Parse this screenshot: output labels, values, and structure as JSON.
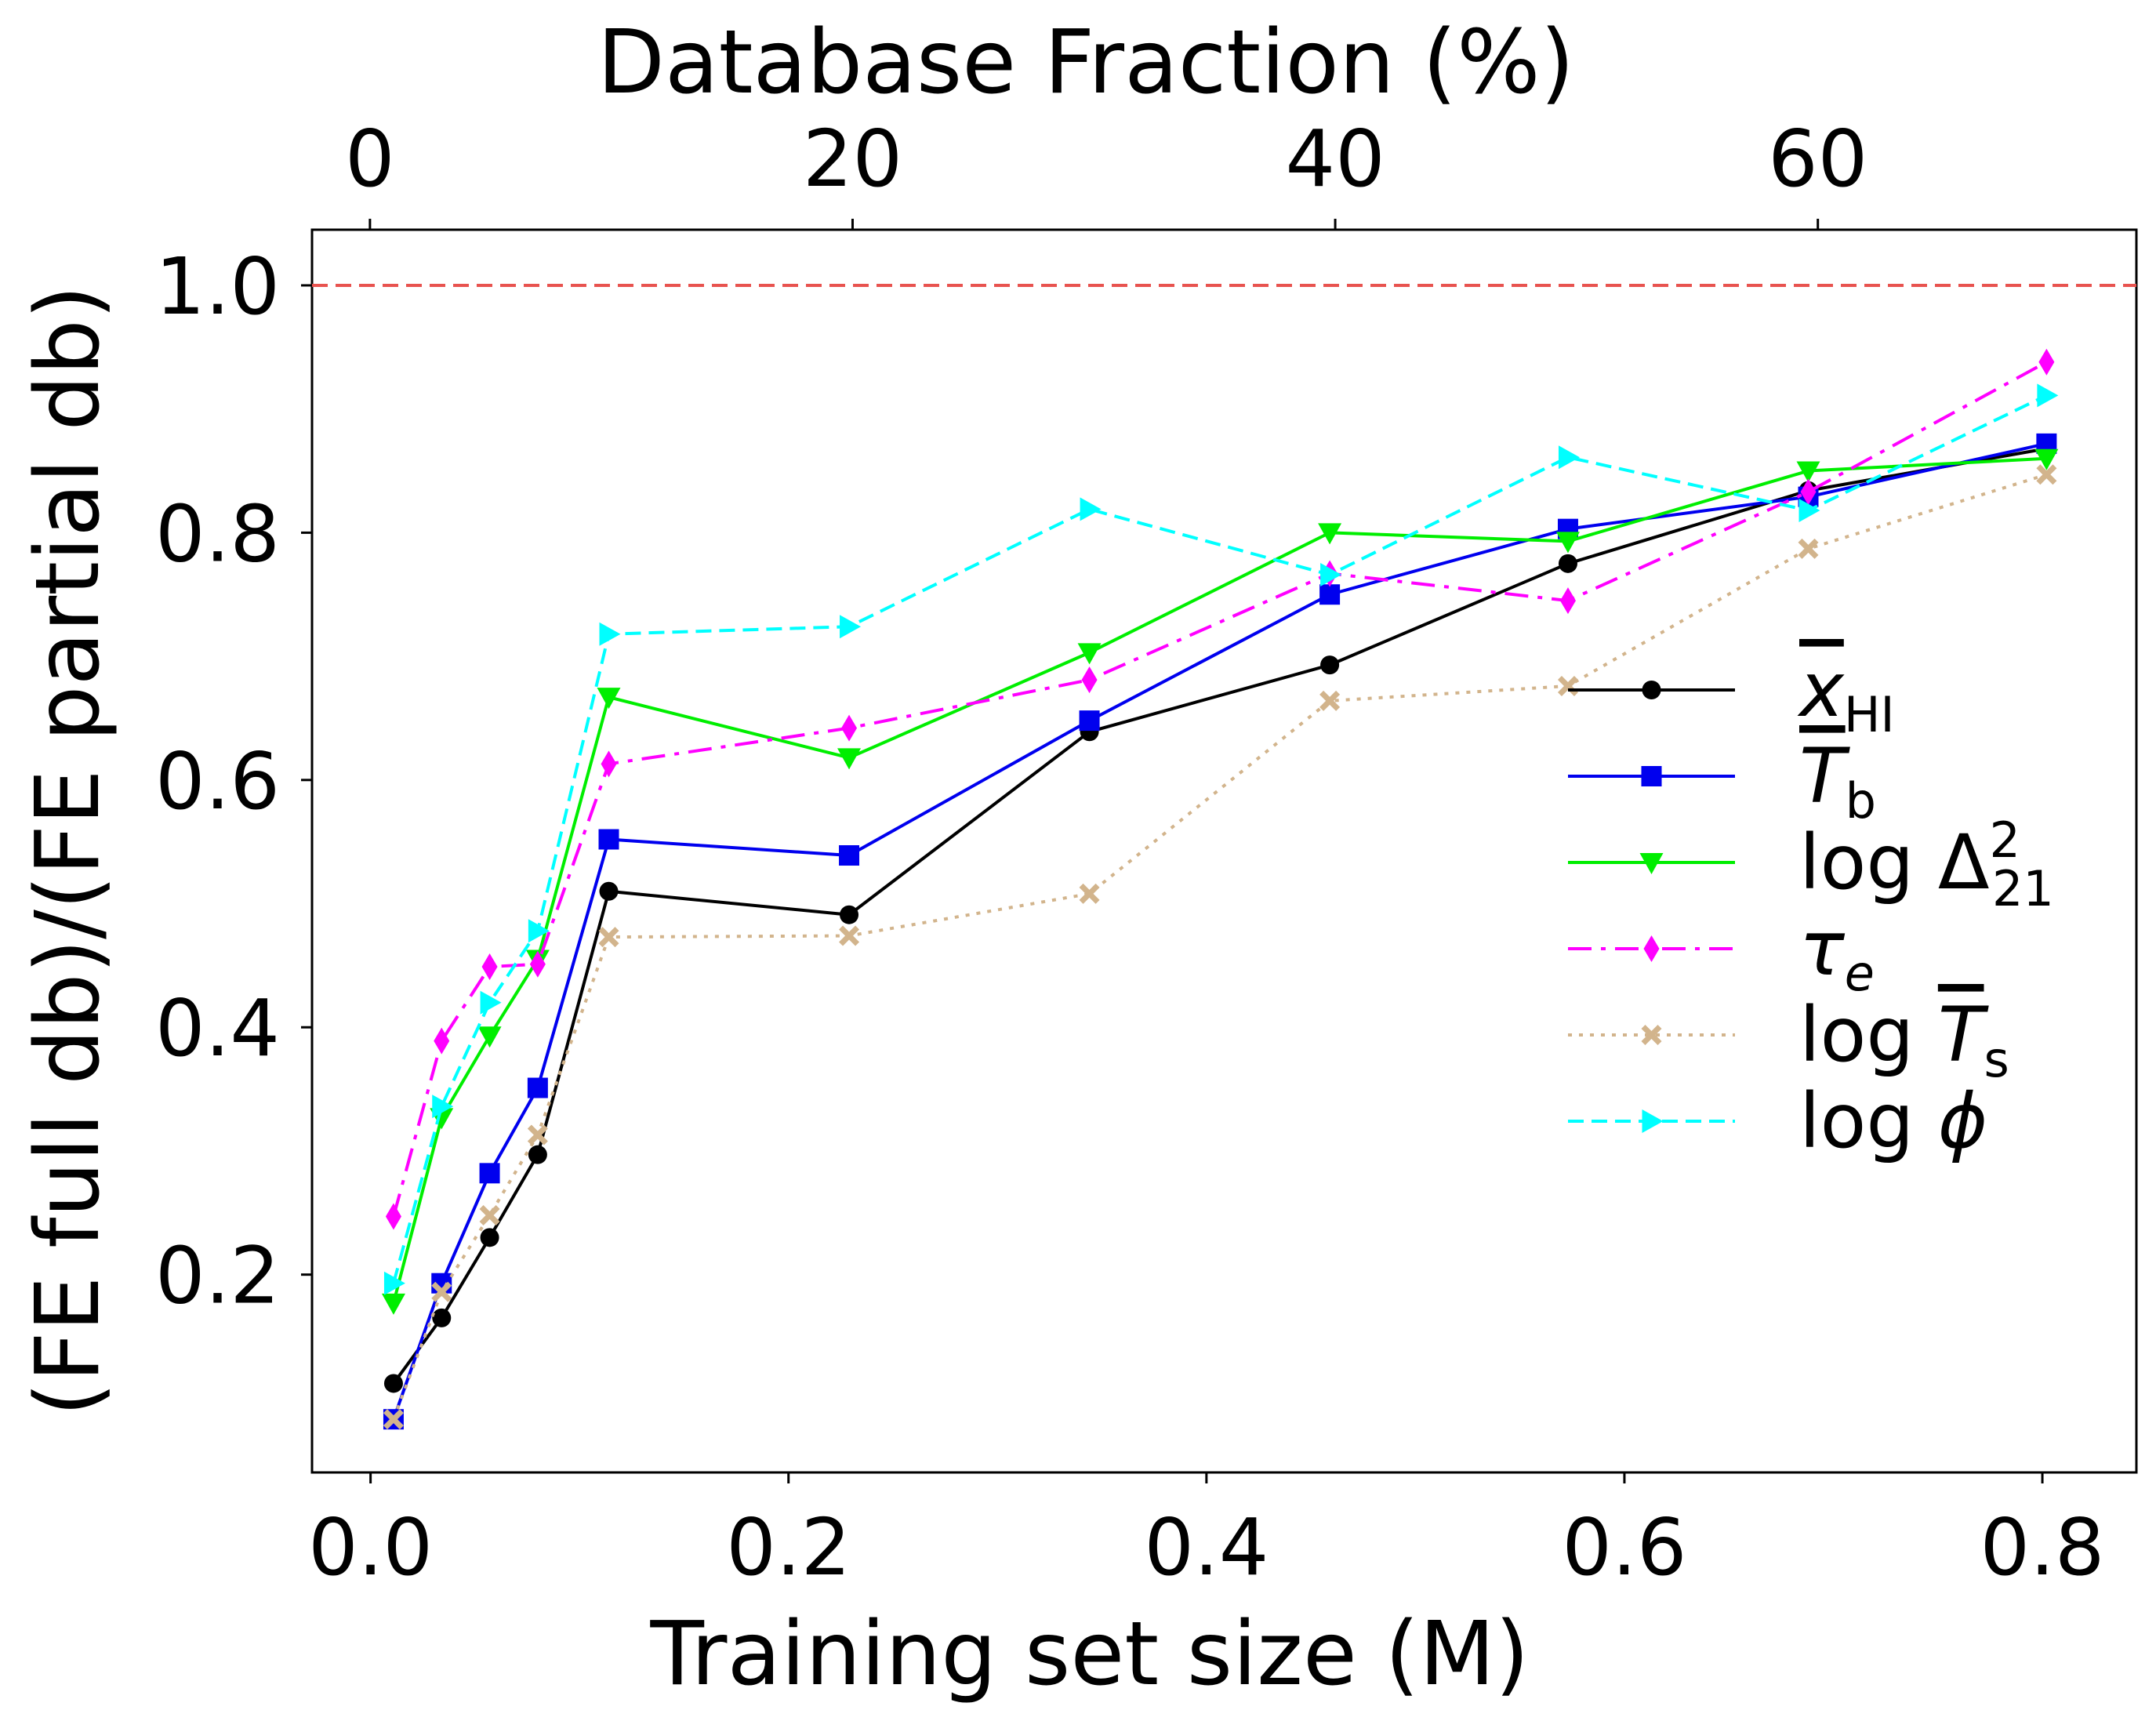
{
  "chart_data": {
    "type": "line",
    "xlabel": "Training set size (M)",
    "x2label": "Database Fraction (%)",
    "ylabel": "(FE full db)/(FE partial db)",
    "xlim": [
      -0.028,
      0.845
    ],
    "ylim": [
      0.04,
      1.045
    ],
    "x2lim": [
      -2.4,
      73.2
    ],
    "xticks": [
      0.0,
      0.2,
      0.4,
      0.6,
      0.8
    ],
    "xtick_labels": [
      "0.0",
      "0.2",
      "0.4",
      "0.6",
      "0.8"
    ],
    "yticks": [
      0.2,
      0.4,
      0.6,
      0.8,
      1.0
    ],
    "ytick_labels": [
      "0.2",
      "0.4",
      "0.6",
      "0.8",
      "1.0"
    ],
    "x2ticks": [
      0,
      20,
      40,
      60
    ],
    "x2tick_labels": [
      "0",
      "20",
      "40",
      "60"
    ],
    "reference_line": {
      "y": 1.0,
      "color": "#e8534f",
      "style": "dashed"
    },
    "legend_position": "lower-right",
    "grid": false,
    "x": [
      0.011,
      0.034,
      0.057,
      0.08,
      0.114,
      0.229,
      0.344,
      0.459,
      0.573,
      0.688,
      0.802
    ],
    "series": [
      {
        "name": "x̄HI",
        "legend": {
          "main": "x",
          "sub": "HI",
          "overbar": true,
          "italic": true,
          "log": false
        },
        "color": "#000000",
        "dash": "",
        "marker": "circle",
        "values": [
          0.112,
          0.165,
          0.23,
          0.297,
          0.51,
          0.491,
          0.639,
          0.693,
          0.775,
          0.834,
          0.868
        ]
      },
      {
        "name": "T̄b",
        "legend": {
          "main": "T",
          "sub": "b",
          "overbar": true,
          "italic": true,
          "log": false
        },
        "color": "#0000ee",
        "dash": "",
        "marker": "square",
        "values": [
          0.083,
          0.193,
          0.282,
          0.351,
          0.552,
          0.539,
          0.648,
          0.75,
          0.803,
          0.829,
          0.872
        ]
      },
      {
        "name": "log Δ²21",
        "legend": {
          "main": "Δ",
          "sub": "21",
          "sup": "2",
          "overbar": false,
          "italic": false,
          "log": true
        },
        "color": "#00ee00",
        "dash": "",
        "marker": "triangle-down",
        "values": [
          0.177,
          0.327,
          0.393,
          0.455,
          0.667,
          0.618,
          0.703,
          0.8,
          0.793,
          0.85,
          0.86
        ]
      },
      {
        "name": "τe",
        "legend": {
          "main": "τ",
          "sub": "e",
          "overbar": false,
          "italic": true,
          "subItalic": true,
          "log": false
        },
        "color": "#ff00ff",
        "dash": "30,12,6,12",
        "marker": "thin-diamond",
        "values": [
          0.247,
          0.389,
          0.449,
          0.451,
          0.613,
          0.642,
          0.681,
          0.767,
          0.745,
          0.833,
          0.938
        ]
      },
      {
        "name": "log T̄s",
        "legend": {
          "main": "T",
          "sub": "s",
          "overbar": true,
          "italic": true,
          "log": true
        },
        "color": "#d2b48c",
        "dash": "5,9",
        "marker": "x-filled",
        "values": [
          0.083,
          0.186,
          0.248,
          0.313,
          0.473,
          0.474,
          0.508,
          0.664,
          0.676,
          0.787,
          0.847
        ]
      },
      {
        "name": "log ϕ",
        "legend": {
          "main": "ϕ",
          "overbar": false,
          "italic": true,
          "log": true
        },
        "color": "#00ffff",
        "dash": "20,10",
        "marker": "triangle-right",
        "values": [
          0.193,
          0.336,
          0.42,
          0.478,
          0.718,
          0.724,
          0.819,
          0.766,
          0.861,
          0.818,
          0.911
        ]
      }
    ]
  }
}
